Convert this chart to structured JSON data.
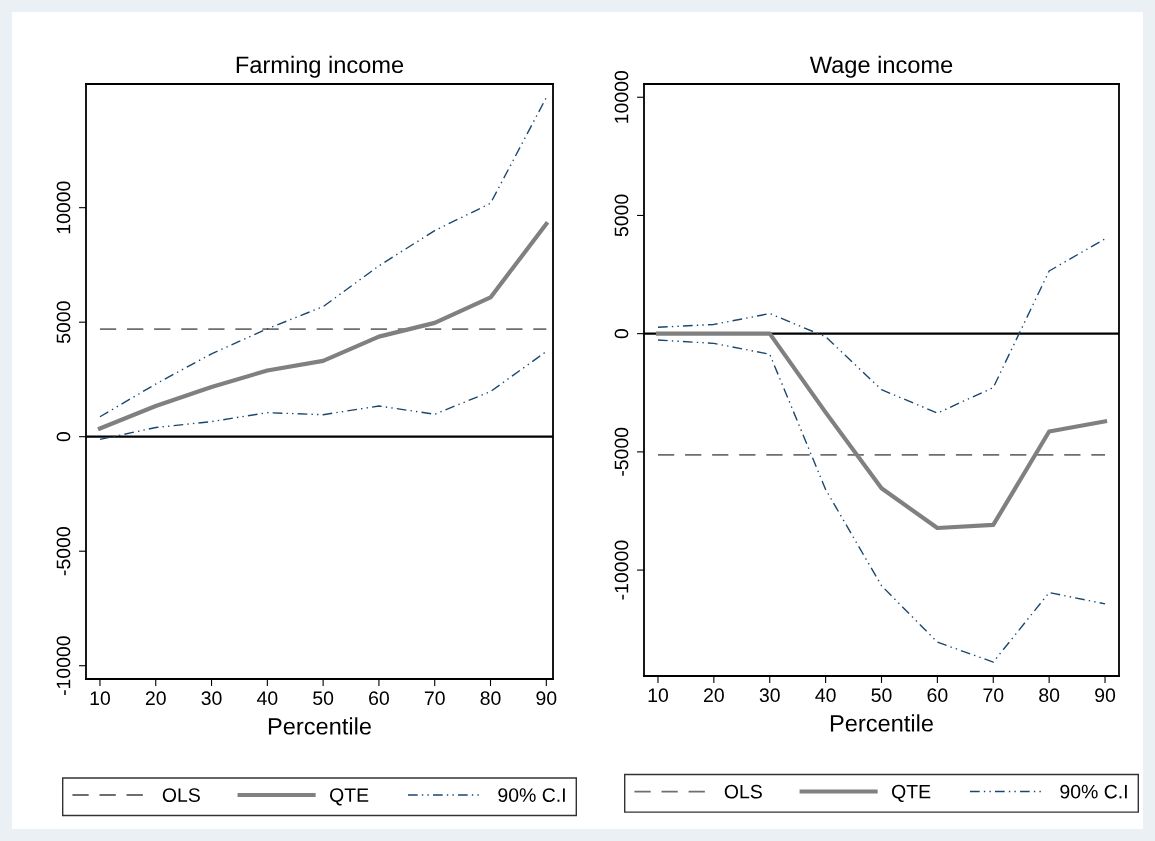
{
  "chart_data": [
    {
      "type": "line",
      "title": "Farming income",
      "xlabel": "Percentile",
      "x": [
        10,
        20,
        30,
        40,
        50,
        60,
        70,
        80,
        90
      ],
      "xlim": [
        7.5,
        91.2
      ],
      "xticks": [
        10,
        20,
        30,
        40,
        50,
        60,
        70,
        80,
        90
      ],
      "ylim": [
        -10580,
        15400
      ],
      "yticks": [
        -10000,
        -5000,
        0,
        5000,
        10000
      ],
      "grid": false,
      "legend": "bottom",
      "marker": "none",
      "series": [
        {
          "name": "OLS",
          "color": "#6e6e6e",
          "line_style": "dashed",
          "values": [
            4700,
            4700,
            4700,
            4700,
            4700,
            4700,
            4700,
            4700,
            4700
          ]
        },
        {
          "name": "QTE",
          "color": "#808080",
          "line_style": "solid",
          "values": [
            360,
            1340,
            2170,
            2890,
            3310,
            4370,
            4970,
            6080,
            9290
          ]
        },
        {
          "name": "90% C.I",
          "color": "#1a476f",
          "line_style": "dashdotdot",
          "values": [
            870,
            2300,
            3620,
            4710,
            5680,
            7460,
            9000,
            10190,
            14810
          ]
        },
        {
          "color": "#1a476f",
          "line_style": "dashdotdot",
          "values": [
            -120,
            400,
            660,
            1050,
            960,
            1340,
            980,
            1970,
            3720
          ]
        }
      ],
      "ref_lines": [
        {
          "axis": "y",
          "value": 0,
          "color": "#000000"
        }
      ]
    },
    {
      "type": "line",
      "title": "Wage income",
      "xlabel": "Percentile",
      "x": [
        10,
        20,
        30,
        40,
        50,
        60,
        70,
        80,
        90
      ],
      "xlim": [
        7.5,
        92.5
      ],
      "xticks": [
        10,
        20,
        30,
        40,
        50,
        60,
        70,
        80,
        90
      ],
      "ylim": [
        -14480,
        10560
      ],
      "yticks": [
        -10000,
        -5000,
        0,
        5000,
        10000
      ],
      "grid": false,
      "legend": "bottom",
      "marker": "none",
      "series": [
        {
          "name": "OLS",
          "color": "#6e6e6e",
          "line_style": "dashed",
          "values": [
            -5130,
            -5130,
            -5130,
            -5130,
            -5130,
            -5130,
            -5130,
            -5130,
            -5130
          ]
        },
        {
          "name": "QTE",
          "color": "#808080",
          "line_style": "solid",
          "values": [
            0,
            0,
            0,
            -3330,
            -6540,
            -8220,
            -8090,
            -4140,
            -3710
          ]
        },
        {
          "name": "90% C.I",
          "color": "#1a476f",
          "line_style": "dashdotdot",
          "values": [
            270,
            390,
            850,
            -130,
            -2370,
            -3360,
            -2280,
            2650,
            4010
          ]
        },
        {
          "color": "#1a476f",
          "line_style": "dashdotdot",
          "values": [
            -270,
            -410,
            -870,
            -6590,
            -10660,
            -13050,
            -13890,
            -10950,
            -11430
          ]
        }
      ],
      "ref_lines": [
        {
          "axis": "y",
          "value": 0,
          "color": "#000000"
        }
      ]
    }
  ]
}
